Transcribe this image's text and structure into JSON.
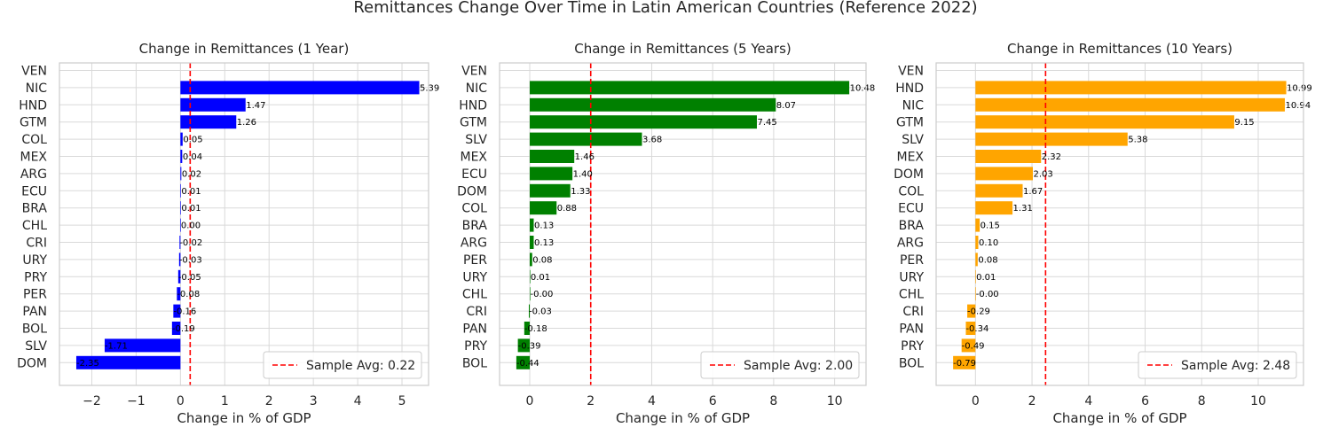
{
  "figure": {
    "title": "Remittances Change Over Time in Latin American Countries (Reference 2022)"
  },
  "chart_data": [
    {
      "type": "bar",
      "orientation": "horizontal",
      "title": "Change in Remittances (1 Year)",
      "xlabel": "Change in % of GDP",
      "ylabel": "",
      "color": "#0000ff",
      "categories": [
        "VEN",
        "NIC",
        "HND",
        "GTM",
        "COL",
        "MEX",
        "ARG",
        "ECU",
        "BRA",
        "CHL",
        "CRI",
        "URY",
        "PRY",
        "PER",
        "PAN",
        "BOL",
        "SLV",
        "DOM"
      ],
      "values": [
        null,
        5.39,
        1.47,
        1.26,
        0.05,
        0.04,
        0.02,
        0.01,
        0.01,
        0.0,
        -0.02,
        -0.03,
        -0.05,
        -0.08,
        -0.16,
        -0.19,
        -1.71,
        -2.35
      ],
      "value_labels": [
        "",
        "5.39",
        "1.47",
        "1.26",
        "0.05",
        "0.04",
        "0.02",
        "0.01",
        "0.01",
        "0.00",
        "-0.02",
        "-0.03",
        "-0.05",
        "-0.08",
        "-0.16",
        "-0.19",
        "-1.71",
        "-2.35"
      ],
      "xlim": [
        -2.73,
        5.6
      ],
      "xticks": [
        -2,
        -1,
        0,
        1,
        2,
        3,
        4,
        5
      ],
      "xtick_labels": [
        "−2",
        "−1",
        "0",
        "1",
        "2",
        "3",
        "4",
        "5"
      ],
      "avg_line": {
        "value": 0.22,
        "label": "Sample Avg: 0.22",
        "color": "#ff0000"
      },
      "legend": "lower-right",
      "grid": true
    },
    {
      "type": "bar",
      "orientation": "horizontal",
      "title": "Change in Remittances (5 Years)",
      "xlabel": "Change in % of GDP",
      "ylabel": "",
      "color": "#008000",
      "categories": [
        "VEN",
        "NIC",
        "HND",
        "GTM",
        "SLV",
        "MEX",
        "ECU",
        "DOM",
        "COL",
        "BRA",
        "ARG",
        "PER",
        "URY",
        "CHL",
        "CRI",
        "PAN",
        "PRY",
        "BOL"
      ],
      "values": [
        null,
        10.48,
        8.07,
        7.45,
        3.68,
        1.46,
        1.4,
        1.33,
        0.88,
        0.13,
        0.13,
        0.08,
        0.01,
        -0.0,
        -0.03,
        -0.18,
        -0.39,
        -0.44
      ],
      "value_labels": [
        "",
        "10.48",
        "8.07",
        "7.45",
        "3.68",
        "1.46",
        "1.40",
        "1.33",
        "0.88",
        "0.13",
        "0.13",
        "0.08",
        "0.01",
        "-0.00",
        "-0.03",
        "-0.18",
        "-0.39",
        "-0.44"
      ],
      "xlim": [
        -0.99,
        11.03
      ],
      "xticks": [
        0,
        2,
        4,
        6,
        8,
        10
      ],
      "xtick_labels": [
        "0",
        "2",
        "4",
        "6",
        "8",
        "10"
      ],
      "avg_line": {
        "value": 2.0,
        "label": "Sample Avg: 2.00",
        "color": "#ff0000"
      },
      "legend": "lower-right",
      "grid": true
    },
    {
      "type": "bar",
      "orientation": "horizontal",
      "title": "Change in Remittances (10 Years)",
      "xlabel": "Change in % of GDP",
      "ylabel": "",
      "color": "#ffa500",
      "categories": [
        "VEN",
        "HND",
        "NIC",
        "GTM",
        "SLV",
        "MEX",
        "DOM",
        "COL",
        "ECU",
        "BRA",
        "ARG",
        "PER",
        "URY",
        "CHL",
        "CRI",
        "PAN",
        "PRY",
        "BOL"
      ],
      "values": [
        null,
        10.99,
        10.94,
        9.15,
        5.38,
        2.32,
        2.03,
        1.67,
        1.31,
        0.15,
        0.1,
        0.08,
        0.01,
        -0.0,
        -0.29,
        -0.34,
        -0.49,
        -0.79
      ],
      "value_labels": [
        "",
        "10.99",
        "10.94",
        "9.15",
        "5.38",
        "2.32",
        "2.03",
        "1.67",
        "1.31",
        "0.15",
        "0.10",
        "0.08",
        "0.01",
        "-0.00",
        "-0.29",
        "-0.34",
        "-0.49",
        "-0.79"
      ],
      "xlim": [
        -1.39,
        11.6
      ],
      "xticks": [
        0,
        2,
        4,
        6,
        8,
        10
      ],
      "xtick_labels": [
        "0",
        "2",
        "4",
        "6",
        "8",
        "10"
      ],
      "avg_line": {
        "value": 2.48,
        "label": "Sample Avg: 2.48",
        "color": "#ff0000"
      },
      "legend": "lower-right",
      "grid": true
    }
  ]
}
